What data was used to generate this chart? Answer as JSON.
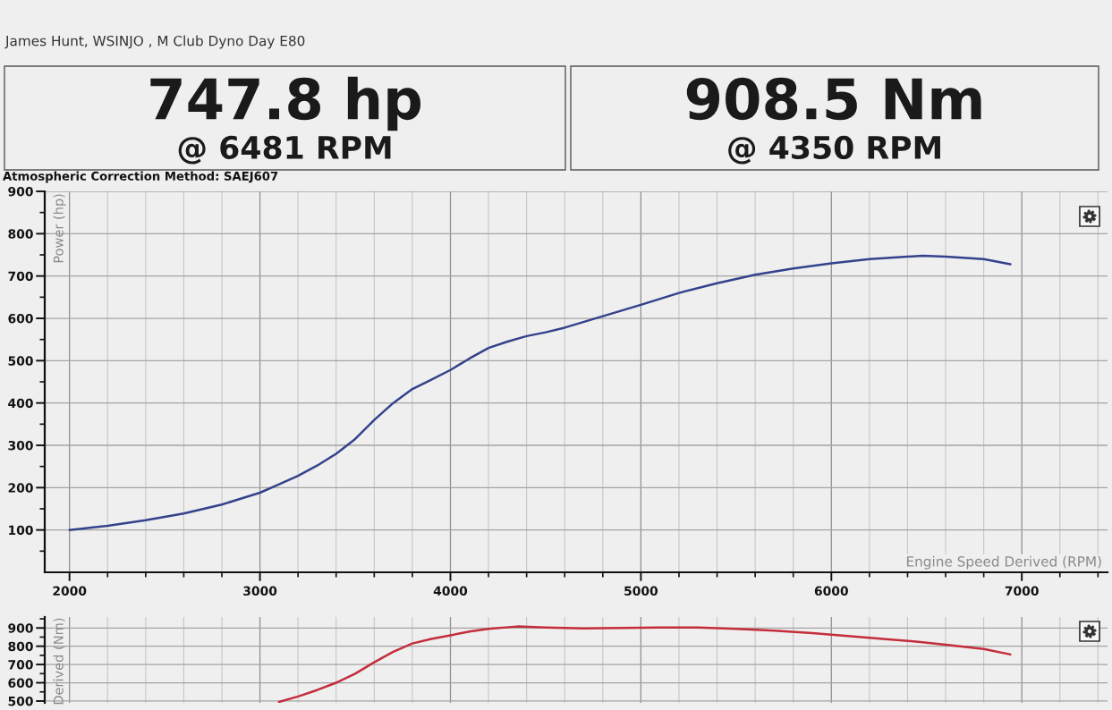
{
  "chart_data": [
    {
      "type": "line",
      "title": "James Hunt, WSINJO , M Club Dyno Day E80",
      "annotations": [
        "747.8 hp",
        "@ 6481 RPM",
        "908.5 Nm",
        "@ 4350 RPM",
        "Atmospheric Correction Method: SAEJ607"
      ],
      "xlabel": "Engine Speed Derived (RPM)",
      "ylabel": "Power (hp)",
      "x": [
        2000,
        2200,
        2400,
        2600,
        2800,
        3000,
        3100,
        3200,
        3300,
        3400,
        3500,
        3600,
        3700,
        3800,
        3900,
        4000,
        4100,
        4200,
        4300,
        4400,
        4500,
        4600,
        4800,
        5000,
        5200,
        5400,
        5600,
        5800,
        6000,
        6200,
        6480,
        6600,
        6800,
        6940
      ],
      "values": [
        100,
        110,
        123,
        139,
        160,
        188,
        208,
        228,
        252,
        280,
        315,
        360,
        400,
        433,
        455,
        478,
        505,
        530,
        545,
        558,
        567,
        578,
        605,
        632,
        660,
        683,
        703,
        718,
        730,
        740,
        748,
        746,
        740,
        728
      ],
      "color": "#34428c",
      "xlim": [
        1870,
        7450
      ],
      "ylim": [
        0,
        900
      ],
      "xticks": [
        2000,
        {
          "value": 2200,
          "label": null
        },
        {
          "value": 2400,
          "label": null
        },
        {
          "value": 2600,
          "label": null
        },
        {
          "value": 2800,
          "label": null
        },
        3000,
        {
          "value": 3200,
          "label": null
        },
        {
          "value": 3400,
          "label": null
        },
        {
          "value": 3600,
          "label": null
        },
        {
          "value": 3800,
          "label": null
        },
        4000,
        {
          "value": 4200,
          "label": null
        },
        {
          "value": 4400,
          "label": null
        },
        {
          "value": 4600,
          "label": null
        },
        {
          "value": 4800,
          "label": null
        },
        5000,
        {
          "value": 5200,
          "label": null
        },
        {
          "value": 5400,
          "label": null
        },
        {
          "value": 5600,
          "label": null
        },
        {
          "value": 5800,
          "label": null
        },
        6000,
        {
          "value": 6200,
          "label": null
        },
        {
          "value": 6400,
          "label": null
        },
        {
          "value": 6600,
          "label": null
        },
        {
          "value": 6800,
          "label": null
        },
        7000,
        {
          "value": 7200,
          "label": null
        },
        {
          "value": 7400,
          "label": null
        }
      ],
      "yticks": [
        {
          "value": 50,
          "label": null
        },
        100,
        {
          "value": 150,
          "label": null
        },
        200,
        {
          "value": 250,
          "label": null
        },
        300,
        {
          "value": 350,
          "label": null
        },
        400,
        {
          "value": 450,
          "label": null
        },
        500,
        {
          "value": 550,
          "label": null
        },
        600,
        {
          "value": 650,
          "label": null
        },
        700,
        {
          "value": 750,
          "label": null
        },
        800,
        {
          "value": 850,
          "label": null
        },
        900
      ],
      "grid": true
    },
    {
      "type": "line",
      "ylabel": "Derived (Nm)",
      "x": [
        3100,
        3200,
        3300,
        3400,
        3500,
        3600,
        3700,
        3800,
        3900,
        4000,
        4100,
        4200,
        4350,
        4500,
        4700,
        4900,
        5100,
        5300,
        5500,
        5700,
        5900,
        6100,
        6300,
        6480,
        6600,
        6800,
        6940
      ],
      "values": [
        495,
        525,
        560,
        600,
        650,
        712,
        770,
        815,
        840,
        860,
        880,
        895,
        908,
        903,
        898,
        900,
        902,
        902,
        895,
        885,
        872,
        855,
        838,
        822,
        808,
        785,
        755
      ],
      "color": "#c42d3c",
      "xlim": [
        1870,
        7450
      ],
      "ylim": [
        490,
        960
      ],
      "xticks": [
        2000,
        {
          "value": 2200,
          "label": null
        },
        {
          "value": 2400,
          "label": null
        },
        {
          "value": 2600,
          "label": null
        },
        {
          "value": 2800,
          "label": null
        },
        3000,
        {
          "value": 3200,
          "label": null
        },
        {
          "value": 3400,
          "label": null
        },
        {
          "value": 3600,
          "label": null
        },
        {
          "value": 3800,
          "label": null
        },
        4000,
        {
          "value": 4200,
          "label": null
        },
        {
          "value": 4400,
          "label": null
        },
        {
          "value": 4600,
          "label": null
        },
        {
          "value": 4800,
          "label": null
        },
        5000,
        {
          "value": 5200,
          "label": null
        },
        {
          "value": 5400,
          "label": null
        },
        {
          "value": 5600,
          "label": null
        },
        {
          "value": 5800,
          "label": null
        },
        6000,
        {
          "value": 6200,
          "label": null
        },
        {
          "value": 6400,
          "label": null
        },
        {
          "value": 6600,
          "label": null
        },
        {
          "value": 6800,
          "label": null
        },
        7000,
        {
          "value": 7200,
          "label": null
        },
        {
          "value": 7400,
          "label": null
        }
      ],
      "yticks": [
        500,
        {
          "value": 550,
          "label": null
        },
        600,
        {
          "value": 650,
          "label": null
        },
        700,
        {
          "value": 750,
          "label": null
        },
        800,
        {
          "value": 850,
          "label": null
        },
        900,
        {
          "value": 950,
          "label": null
        }
      ],
      "grid": true,
      "tick_labels": "y"
    }
  ]
}
